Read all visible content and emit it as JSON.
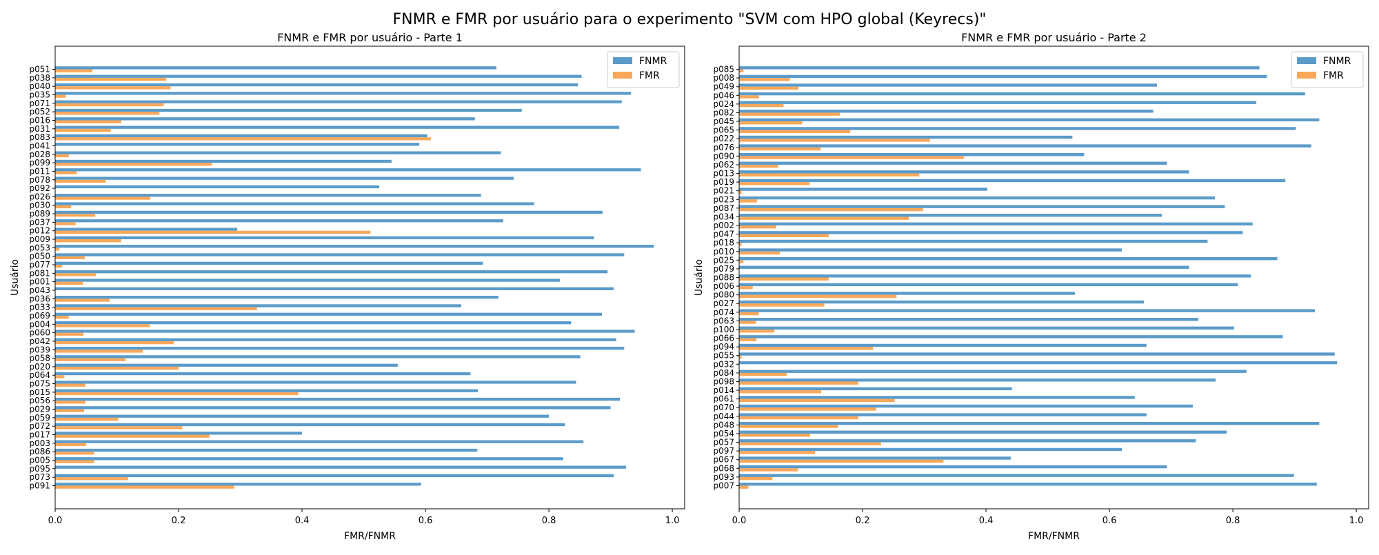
{
  "figure": {
    "title": "FNMR e FMR por usuário para o experimento \"SVM com HPO global (Keyrecs)\""
  },
  "colors": {
    "FNMR": "#5b9bc9",
    "FMR": "#f9a85a"
  },
  "chart_data": [
    {
      "type": "bar",
      "orientation": "horizontal",
      "title": "FNMR e FMR por usuário - Parte 1",
      "xlabel": "FMR/FNMR",
      "ylabel": "Usuário",
      "xlim": [
        0,
        1.02
      ],
      "xticks": [
        "0.0",
        "0.2",
        "0.4",
        "0.6",
        "0.8",
        "1.0"
      ],
      "grid": false,
      "legend_position": "top-right",
      "categories": [
        "p051",
        "p038",
        "p040",
        "p035",
        "p071",
        "p052",
        "p016",
        "p031",
        "p083",
        "p041",
        "p028",
        "p099",
        "p011",
        "p078",
        "p092",
        "p026",
        "p030",
        "p089",
        "p037",
        "p012",
        "p009",
        "p053",
        "p050",
        "p077",
        "p081",
        "p001",
        "p043",
        "p036",
        "p033",
        "p069",
        "p004",
        "p060",
        "p042",
        "p039",
        "p058",
        "p020",
        "p064",
        "p075",
        "p015",
        "p056",
        "p029",
        "p059",
        "p072",
        "p017",
        "p003",
        "p086",
        "p005",
        "p095",
        "p073",
        "p091"
      ],
      "series": [
        {
          "name": "FNMR",
          "values": [
            0.715,
            0.853,
            0.847,
            0.933,
            0.918,
            0.756,
            0.68,
            0.914,
            0.603,
            0.59,
            0.722,
            0.545,
            0.949,
            0.743,
            0.525,
            0.69,
            0.776,
            0.887,
            0.726,
            0.295,
            0.873,
            0.97,
            0.922,
            0.693,
            0.895,
            0.818,
            0.905,
            0.718,
            0.658,
            0.886,
            0.836,
            0.939,
            0.909,
            0.922,
            0.851,
            0.555,
            0.673,
            0.844,
            0.685,
            0.915,
            0.9,
            0.8,
            0.826,
            0.4,
            0.856,
            0.684,
            0.823,
            0.925,
            0.905,
            0.593
          ]
        },
        {
          "name": "FMR",
          "values": [
            0.06,
            0.18,
            0.187,
            0.017,
            0.176,
            0.169,
            0.107,
            0.09,
            0.609,
            0.0,
            0.022,
            0.254,
            0.035,
            0.082,
            0.0,
            0.154,
            0.026,
            0.065,
            0.033,
            0.511,
            0.107,
            0.007,
            0.048,
            0.011,
            0.066,
            0.045,
            0.0,
            0.088,
            0.327,
            0.022,
            0.153,
            0.046,
            0.192,
            0.142,
            0.114,
            0.2,
            0.015,
            0.049,
            0.394,
            0.049,
            0.047,
            0.102,
            0.206,
            0.25,
            0.05,
            0.063,
            0.063,
            0.0,
            0.118,
            0.29
          ]
        }
      ]
    },
    {
      "type": "bar",
      "orientation": "horizontal",
      "title": "FNMR e FMR por usuário - Parte 2",
      "xlabel": "FMR/FNMR",
      "ylabel": "Usuário",
      "xlim": [
        0,
        1.02
      ],
      "xticks": [
        "0.0",
        "0.2",
        "0.4",
        "0.6",
        "0.8",
        "1.0"
      ],
      "grid": false,
      "legend_position": "top-right",
      "categories": [
        "p085",
        "p008",
        "p049",
        "p046",
        "p024",
        "p082",
        "p045",
        "p065",
        "p022",
        "p076",
        "p090",
        "p062",
        "p013",
        "p019",
        "p021",
        "p023",
        "p087",
        "p034",
        "p002",
        "p047",
        "p018",
        "p010",
        "p025",
        "p079",
        "p088",
        "p006",
        "p080",
        "p027",
        "p074",
        "p063",
        "p100",
        "p066",
        "p094",
        "p055",
        "p032",
        "p084",
        "p098",
        "p014",
        "p061",
        "p070",
        "p044",
        "p048",
        "p054",
        "p057",
        "p097",
        "p067",
        "p068",
        "p093",
        "p007"
      ],
      "series": [
        {
          "name": "FNMR",
          "values": [
            0.843,
            0.855,
            0.677,
            0.917,
            0.838,
            0.671,
            0.94,
            0.902,
            0.54,
            0.927,
            0.559,
            0.693,
            0.729,
            0.885,
            0.402,
            0.771,
            0.787,
            0.685,
            0.832,
            0.816,
            0.759,
            0.62,
            0.872,
            0.729,
            0.829,
            0.808,
            0.544,
            0.656,
            0.933,
            0.744,
            0.802,
            0.881,
            0.66,
            0.965,
            0.969,
            0.822,
            0.772,
            0.442,
            0.641,
            0.735,
            0.66,
            0.94,
            0.79,
            0.74,
            0.62,
            0.44,
            0.693,
            0.899,
            0.936
          ]
        },
        {
          "name": "FMR",
          "values": [
            0.007,
            0.082,
            0.096,
            0.032,
            0.072,
            0.163,
            0.102,
            0.18,
            0.309,
            0.132,
            0.364,
            0.063,
            0.292,
            0.114,
            0.004,
            0.029,
            0.298,
            0.275,
            0.06,
            0.145,
            0.004,
            0.066,
            0.007,
            0.0,
            0.145,
            0.022,
            0.255,
            0.138,
            0.032,
            0.027,
            0.057,
            0.028,
            0.217,
            0.004,
            0.0,
            0.077,
            0.193,
            0.133,
            0.252,
            0.222,
            0.193,
            0.16,
            0.115,
            0.23,
            0.123,
            0.331,
            0.095,
            0.054,
            0.015
          ]
        }
      ]
    }
  ]
}
